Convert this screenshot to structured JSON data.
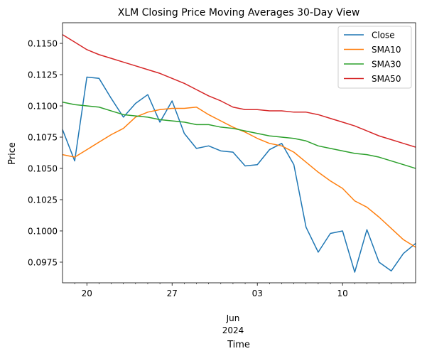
{
  "chart_data": {
    "type": "line",
    "title": "XLM Closing Price Moving Averages 30-Day View",
    "xlabel": "Time",
    "ylabel": "Price",
    "x": [
      "2024-05-18",
      "2024-05-19",
      "2024-05-20",
      "2024-05-21",
      "2024-05-22",
      "2024-05-23",
      "2024-05-24",
      "2024-05-25",
      "2024-05-26",
      "2024-05-27",
      "2024-05-28",
      "2024-05-29",
      "2024-05-30",
      "2024-05-31",
      "2024-06-01",
      "2024-06-02",
      "2024-06-03",
      "2024-06-04",
      "2024-06-05",
      "2024-06-06",
      "2024-06-07",
      "2024-06-08",
      "2024-06-09",
      "2024-06-10",
      "2024-06-11",
      "2024-06-12",
      "2024-06-13",
      "2024-06-14",
      "2024-06-15",
      "2024-06-16"
    ],
    "xlim": [
      "2024-05-18",
      "2024-06-16"
    ],
    "ylim": [
      0.09585,
      0.11665
    ],
    "x_ticks": [
      {
        "date": "2024-05-20",
        "label": "20"
      },
      {
        "date": "2024-05-27",
        "label": "27"
      },
      {
        "date": "2024-06-03",
        "label": "03"
      },
      {
        "date": "2024-06-10",
        "label": "10"
      }
    ],
    "x_minor_ticks": [
      "2024-05-19",
      "2024-05-21",
      "2024-05-22",
      "2024-05-23",
      "2024-05-24",
      "2024-05-25",
      "2024-05-26",
      "2024-05-28",
      "2024-05-29",
      "2024-05-30",
      "2024-05-31",
      "2024-06-01",
      "2024-06-02",
      "2024-06-04",
      "2024-06-05",
      "2024-06-06",
      "2024-06-07",
      "2024-06-08",
      "2024-06-09",
      "2024-06-11",
      "2024-06-12",
      "2024-06-13",
      "2024-06-14",
      "2024-06-15"
    ],
    "x_sublabel": {
      "month": "Jun",
      "year": "2024"
    },
    "y_ticks": [
      "0.0975",
      "0.1000",
      "0.1025",
      "0.1050",
      "0.1075",
      "0.1100",
      "0.1125",
      "0.1150"
    ],
    "legend_position": "top-right",
    "grid": false,
    "series": [
      {
        "name": "Close",
        "color": "#1f77b4",
        "values": [
          0.1081,
          0.1056,
          0.1123,
          0.1122,
          0.1106,
          0.1091,
          0.1102,
          0.1109,
          0.1087,
          0.1104,
          0.1078,
          0.1066,
          0.1068,
          0.1064,
          0.1063,
          0.1052,
          0.1053,
          0.1065,
          0.107,
          0.1053,
          0.1003,
          0.0983,
          0.0998,
          0.1,
          0.0967,
          0.1001,
          0.0975,
          0.0968,
          0.0982,
          0.099
        ]
      },
      {
        "name": "SMA10",
        "color": "#ff7f0e",
        "values": [
          0.1061,
          0.1059,
          0.1065,
          0.1071,
          0.1077,
          0.1082,
          0.1091,
          0.1095,
          0.1097,
          0.1098,
          0.1098,
          0.1099,
          0.1093,
          0.1088,
          0.1083,
          0.1079,
          0.1074,
          0.107,
          0.1068,
          0.1063,
          0.1055,
          0.1047,
          0.104,
          0.1034,
          0.1024,
          0.1019,
          0.1011,
          0.1002,
          0.0993,
          0.0987
        ]
      },
      {
        "name": "SMA30",
        "color": "#2ca02c",
        "values": [
          0.1103,
          0.1101,
          0.11,
          0.1099,
          0.1096,
          0.1093,
          0.1092,
          0.1091,
          0.1089,
          0.1088,
          0.1087,
          0.1085,
          0.1085,
          0.1083,
          0.1082,
          0.108,
          0.1078,
          0.1076,
          0.1075,
          0.1074,
          0.1072,
          0.1068,
          0.1066,
          0.1064,
          0.1062,
          0.1061,
          0.1059,
          0.1056,
          0.1053,
          0.105
        ]
      },
      {
        "name": "SMA50",
        "color": "#d62728",
        "values": [
          0.1157,
          0.1151,
          0.1145,
          0.1141,
          0.1138,
          0.1135,
          0.1132,
          0.1129,
          0.1126,
          0.1122,
          0.1118,
          0.1113,
          0.1108,
          0.1104,
          0.1099,
          0.1097,
          0.1097,
          0.1096,
          0.1096,
          0.1095,
          0.1095,
          0.1093,
          0.109,
          0.1087,
          0.1084,
          0.108,
          0.1076,
          0.1073,
          0.107,
          0.1067
        ]
      }
    ]
  }
}
